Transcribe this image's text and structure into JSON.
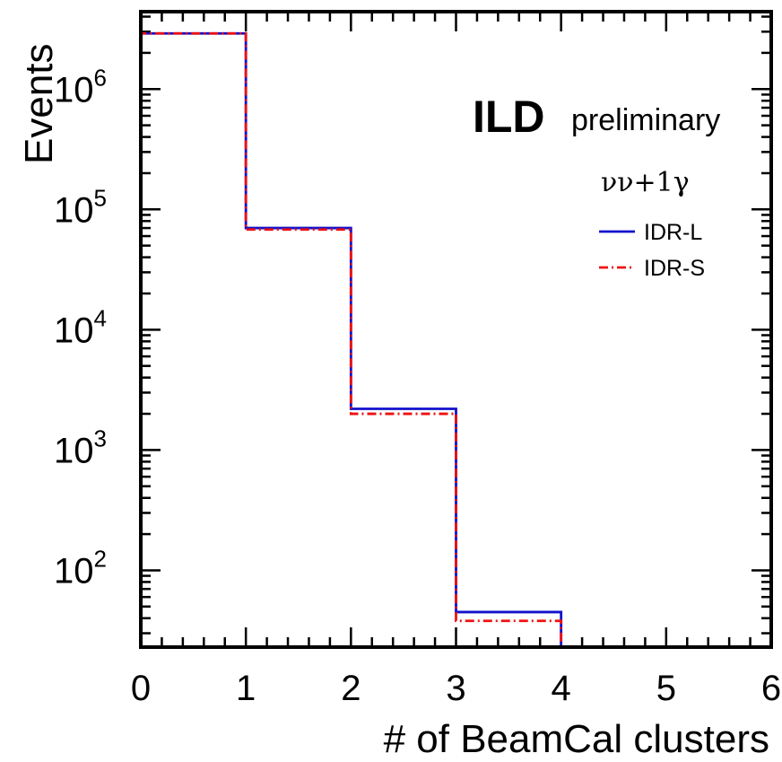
{
  "chart_data": {
    "type": "histogram",
    "xlabel": "# of BeamCal clusters",
    "ylabel": "Events",
    "xlim": [
      0,
      6
    ],
    "ylim": [
      23,
      4400000
    ],
    "log_y": true,
    "grid": false,
    "x_ticks": [
      "0",
      "1",
      "2",
      "3",
      "4",
      "5",
      "6"
    ],
    "y_ticks": [
      {
        "base": "10",
        "exp": "2",
        "value": 100
      },
      {
        "base": "10",
        "exp": "3",
        "value": 1000
      },
      {
        "base": "10",
        "exp": "4",
        "value": 10000
      },
      {
        "base": "10",
        "exp": "5",
        "value": 100000
      },
      {
        "base": "10",
        "exp": "6",
        "value": 1000000
      }
    ],
    "bin_edges": [
      0,
      1,
      2,
      3,
      4,
      5,
      6
    ],
    "series": [
      {
        "name": "IDR-L",
        "color": "#1111cc",
        "style": "solid",
        "values": [
          2900000,
          70000,
          2200,
          45,
          23,
          23
        ]
      },
      {
        "name": "IDR-S",
        "color": "#ee1111",
        "style": "dash-dot",
        "values": [
          2900000,
          68000,
          2000,
          38,
          23,
          23
        ]
      }
    ],
    "annotations": {
      "label_main": "ILD",
      "label_sub": "preliminary",
      "process": "νν+1γ"
    },
    "legend_position": "top-right"
  }
}
